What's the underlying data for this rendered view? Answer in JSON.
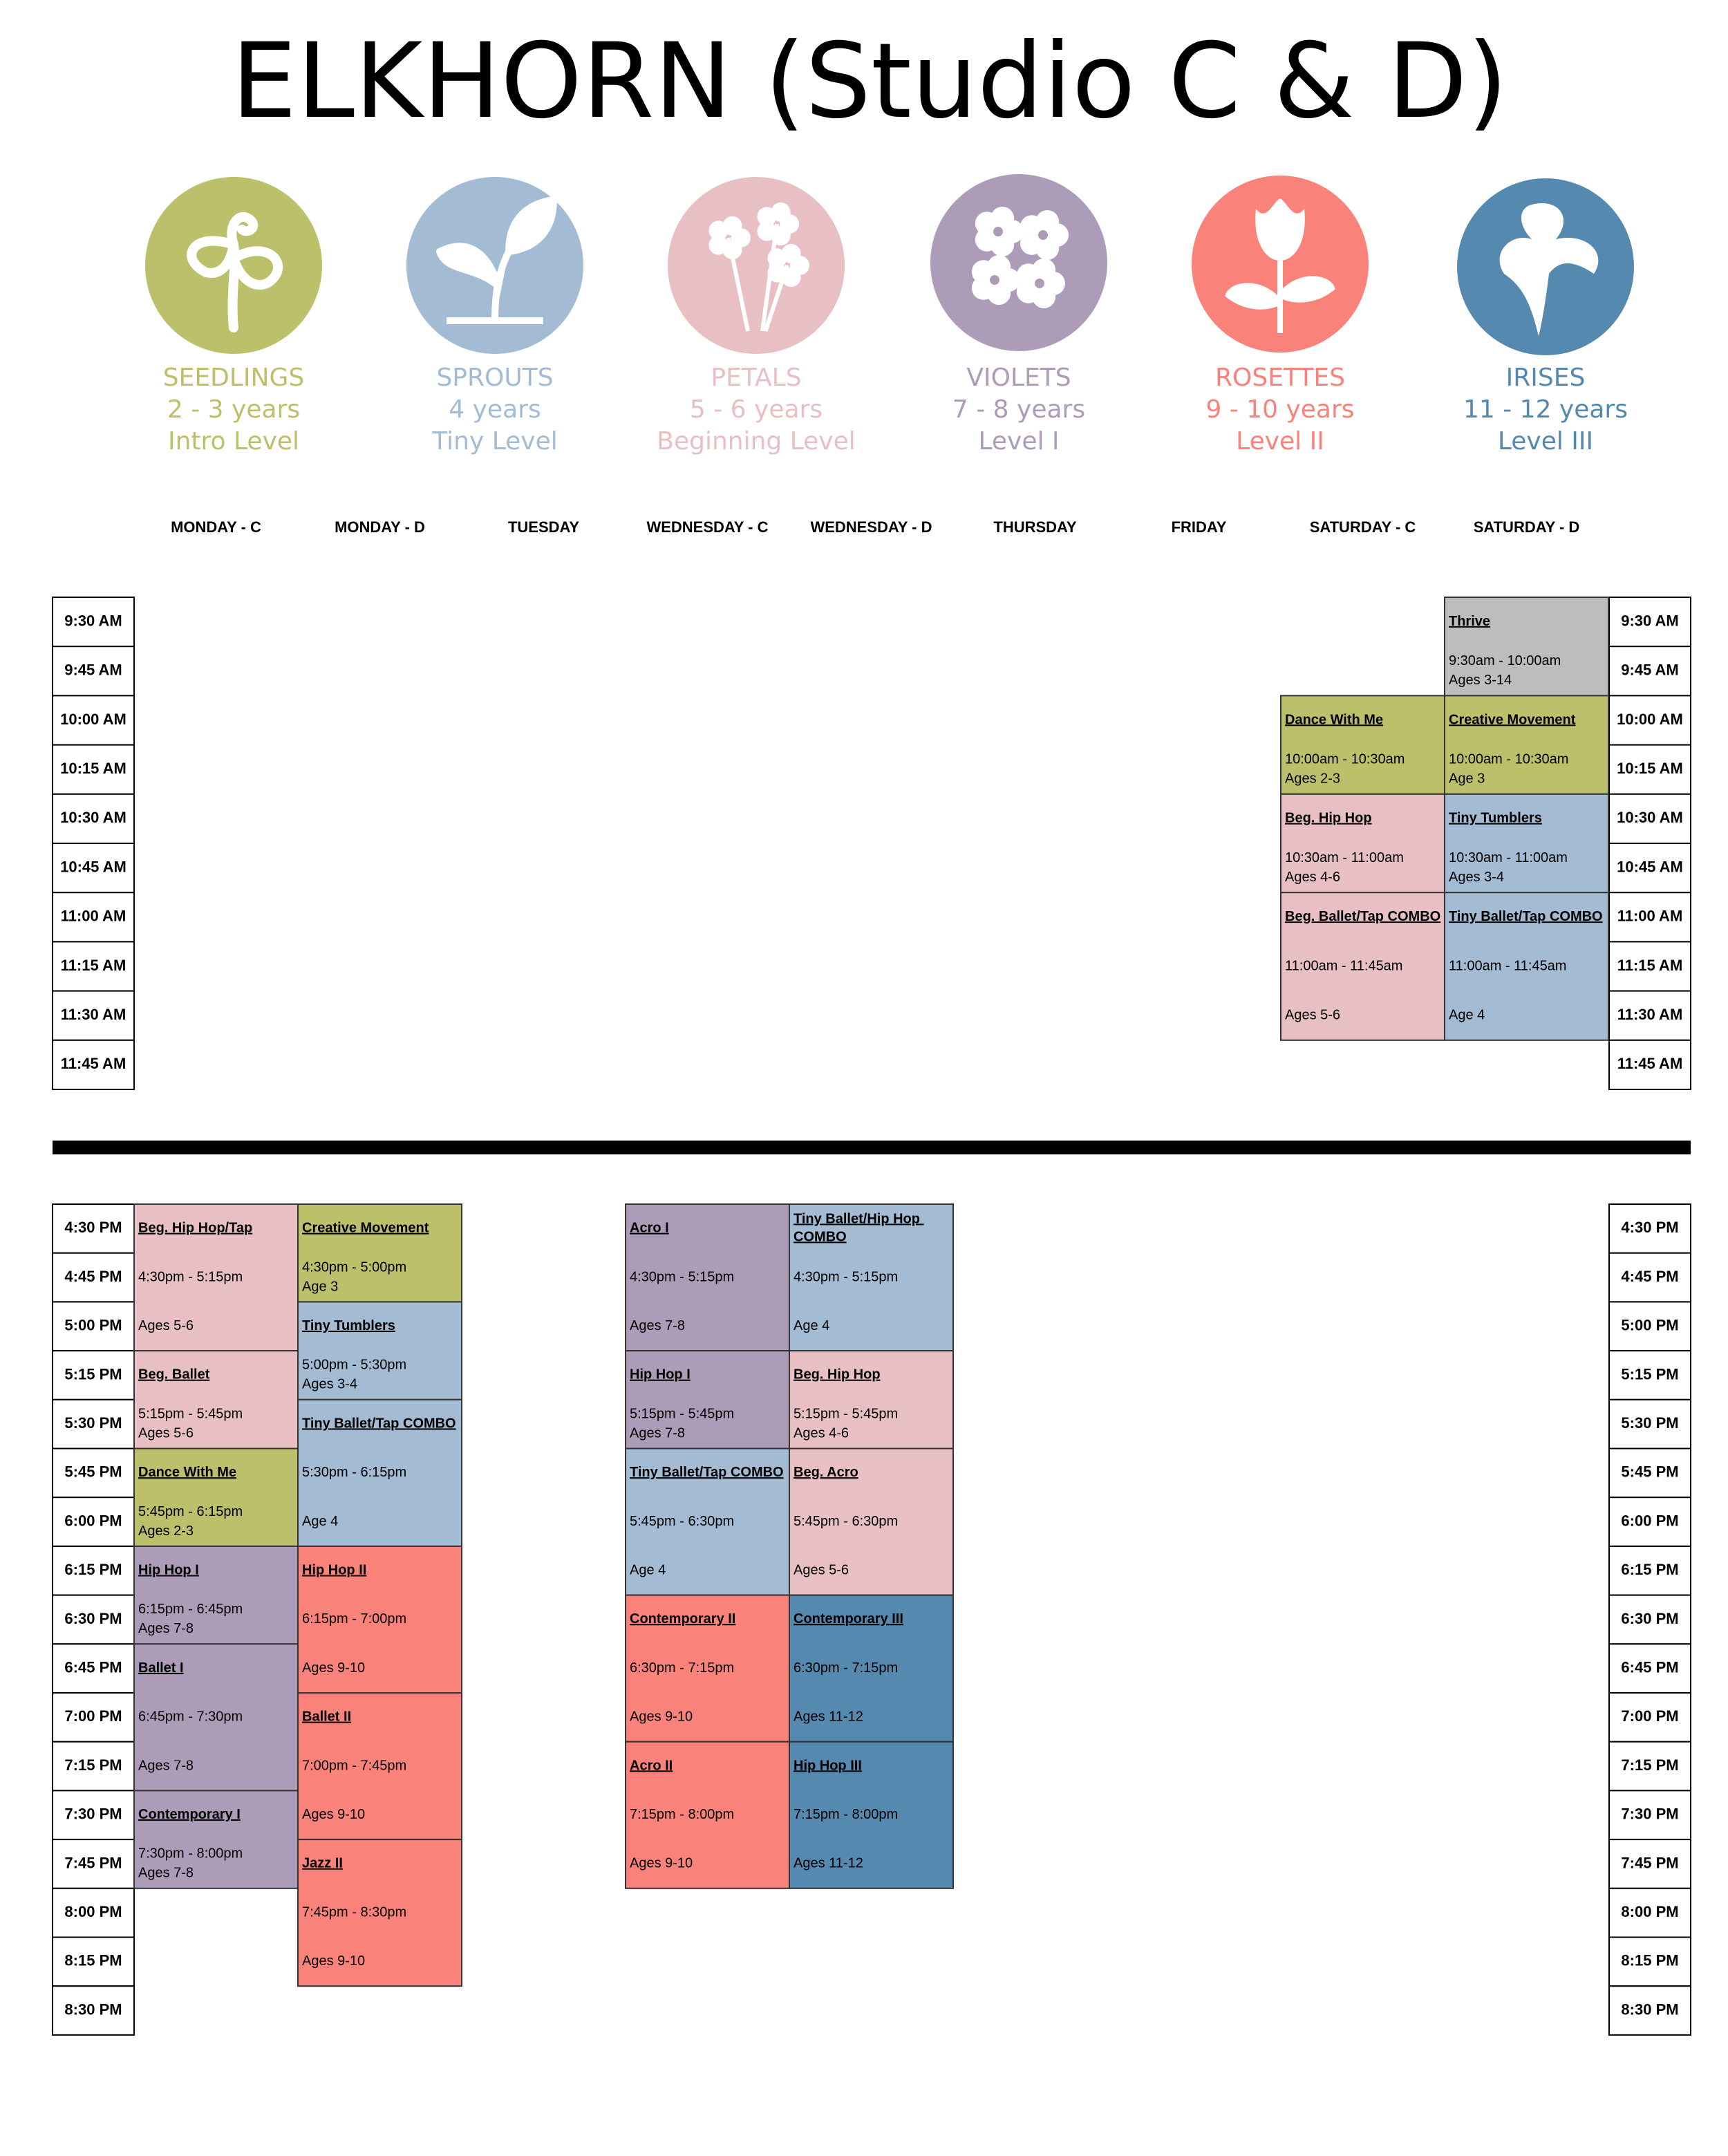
{
  "title": "ELKHORN (Studio C & D)",
  "levels": [
    {
      "name": "SEEDLINGS",
      "ages": "2 - 3 years",
      "level": "Intro Level",
      "color": "#bcc06b"
    },
    {
      "name": "SPROUTS",
      "ages": "4 years",
      "level": "Tiny Level",
      "color": "#a3bbd3"
    },
    {
      "name": "PETALS",
      "ages": "5 - 6 years",
      "level": "Beginning Level",
      "color": "#e8c0c3"
    },
    {
      "name": "VIOLETS",
      "ages": "7 - 8 years",
      "level": "Level I",
      "color": "#ad9cb8"
    },
    {
      "name": "ROSETTES",
      "ages": "9 - 10 years",
      "level": "Level II",
      "color": "#f9827a"
    },
    {
      "name": "IRISES",
      "ages": "11 - 12 years",
      "level": "Level III",
      "color": "#5689b0"
    }
  ],
  "morning_times": [
    "9:30 AM",
    "9:45 AM",
    "10:00 AM",
    "10:15 AM",
    "10:30 AM",
    "10:45 AM",
    "11:00 AM",
    "11:15 AM",
    "11:30 AM",
    "11:45 AM"
  ],
  "afternoon_times": [
    "4:30 PM",
    "4:45 PM",
    "5:00 PM",
    "5:15 PM",
    "5:30 PM",
    "5:45 PM",
    "6:00 PM",
    "6:15 PM",
    "6:30 PM",
    "6:45 PM",
    "7:00 PM",
    "7:15 PM",
    "7:30 PM",
    "7:45 PM",
    "8:00 PM",
    "8:15 PM",
    "8:30 PM"
  ],
  "days": [
    {
      "name": "MONDAY - C",
      "afternoon": [
        {
          "name": "Beg. Hip Hop/Tap",
          "time": "4:30pm - 5:15pm",
          "ages": "Ages 5-6",
          "color": "#e8c0c3"
        },
        {
          "name": "Beg. Ballet",
          "time": "5:15pm - 5:45pm",
          "ages": "Ages 5-6",
          "color": "#e8c0c3"
        },
        {
          "name": "Dance With Me",
          "time": "5:45pm - 6:15pm",
          "ages": "Ages 2-3",
          "color": "#bcc06b"
        },
        {
          "name": "Hip Hop I",
          "time": "6:15pm - 6:45pm",
          "ages": "Ages 7-8",
          "color": "#ad9cb8"
        },
        {
          "name": "Ballet I",
          "time": "6:45pm - 7:30pm",
          "ages": "Ages 7-8",
          "color": "#ad9cb8"
        },
        {
          "name": "Contemporary I",
          "time": "7:30pm - 8:00pm",
          "ages": "Ages 7-8",
          "color": "#ad9cb8"
        }
      ]
    },
    {
      "name": "MONDAY - D",
      "afternoon": [
        {
          "name": "Creative Movement",
          "time": "4:30pm - 5:00pm",
          "ages": "Age 3",
          "color": "#bcc06b"
        },
        {
          "name": "Tiny Tumblers",
          "time": "5:00pm - 5:30pm",
          "ages": "Ages 3-4",
          "color": "#a3bbd3"
        },
        {
          "name": "Tiny Ballet/Tap COMBO",
          "time": "5:30pm - 6:15pm",
          "ages": "Age 4",
          "color": "#a3bbd3"
        },
        {
          "name": "Hip Hop II",
          "time": "6:15pm - 7:00pm",
          "ages": "Ages 9-10",
          "color": "#f9827a"
        },
        {
          "name": "Ballet II",
          "time": "7:00pm - 7:45pm",
          "ages": "Ages 9-10",
          "color": "#f9827a"
        },
        {
          "name": "Jazz II",
          "time": "7:45pm - 8:30pm",
          "ages": "Ages 9-10",
          "color": "#f9827a"
        }
      ]
    },
    {
      "name": "TUESDAY"
    },
    {
      "name": "WEDNESDAY - C",
      "afternoon": [
        {
          "name": "Acro I",
          "time": "4:30pm - 5:15pm",
          "ages": "Ages 7-8",
          "color": "#ad9cb8"
        },
        {
          "name": "Hip Hop I",
          "time": "5:15pm - 5:45pm",
          "ages": "Ages 7-8",
          "color": "#ad9cb8"
        },
        {
          "name": "Tiny Ballet/Tap COMBO",
          "time": "5:45pm - 6:30pm",
          "ages": "Age 4",
          "color": "#a3bbd3"
        },
        {
          "name": "Contemporary II",
          "time": "6:30pm - 7:15pm",
          "ages": "Ages 9-10",
          "color": "#f9827a"
        },
        {
          "name": "Acro II",
          "time": "7:15pm - 8:00pm",
          "ages": "Ages 9-10",
          "color": "#f9827a"
        }
      ]
    },
    {
      "name": "WEDNESDAY - D",
      "afternoon": [
        {
          "name": "Tiny Ballet/Hip Hop COMBO",
          "time": "4:30pm - 5:15pm",
          "ages": "Age 4",
          "color": "#a3bbd3"
        },
        {
          "name": "Beg. Hip Hop",
          "time": "5:15pm - 5:45pm",
          "ages": "Ages 4-6",
          "color": "#e8c0c3"
        },
        {
          "name": "Beg. Acro",
          "time": "5:45pm - 6:30pm",
          "ages": "Ages 5-6",
          "color": "#e8c0c3"
        },
        {
          "name": "Contemporary III",
          "time": "6:30pm - 7:15pm",
          "ages": "Ages 11-12",
          "color": "#5689b0"
        },
        {
          "name": "Hip Hop III",
          "time": "7:15pm - 8:00pm",
          "ages": "Ages 11-12",
          "color": "#5689b0"
        }
      ]
    },
    {
      "name": "THURSDAY"
    },
    {
      "name": "FRIDAY"
    },
    {
      "name": "SATURDAY - C",
      "morning": [
        {
          "name": "Dance With Me",
          "time": "10:00am - 10:30am",
          "ages": "Ages 2-3",
          "color": "#bcc06b"
        },
        {
          "name": "Beg. Hip Hop",
          "time": "10:30am - 11:00am",
          "ages": "Ages 4-6",
          "color": "#e8c0c3"
        },
        {
          "name": "Beg. Ballet/Tap COMBO",
          "time": "11:00am - 11:45am",
          "ages": "Ages 5-6",
          "color": "#e8c0c3"
        }
      ]
    },
    {
      "name": "SATURDAY - D",
      "morning": [
        {
          "name": "Thrive",
          "time": "9:30am - 10:00am",
          "ages": "Ages 3-14",
          "color": "#bdbdbd"
        },
        {
          "name": "Creative Movement",
          "time": "10:00am - 10:30am",
          "ages": "Age 3",
          "color": "#bcc06b"
        },
        {
          "name": "Tiny Tumblers",
          "time": "10:30am - 11:00am",
          "ages": "Ages 3-4",
          "color": "#a3bbd3"
        },
        {
          "name": "Tiny Ballet/Tap COMBO",
          "time": "11:00am - 11:45am",
          "ages": "Age 4",
          "color": "#a3bbd3"
        }
      ]
    }
  ]
}
